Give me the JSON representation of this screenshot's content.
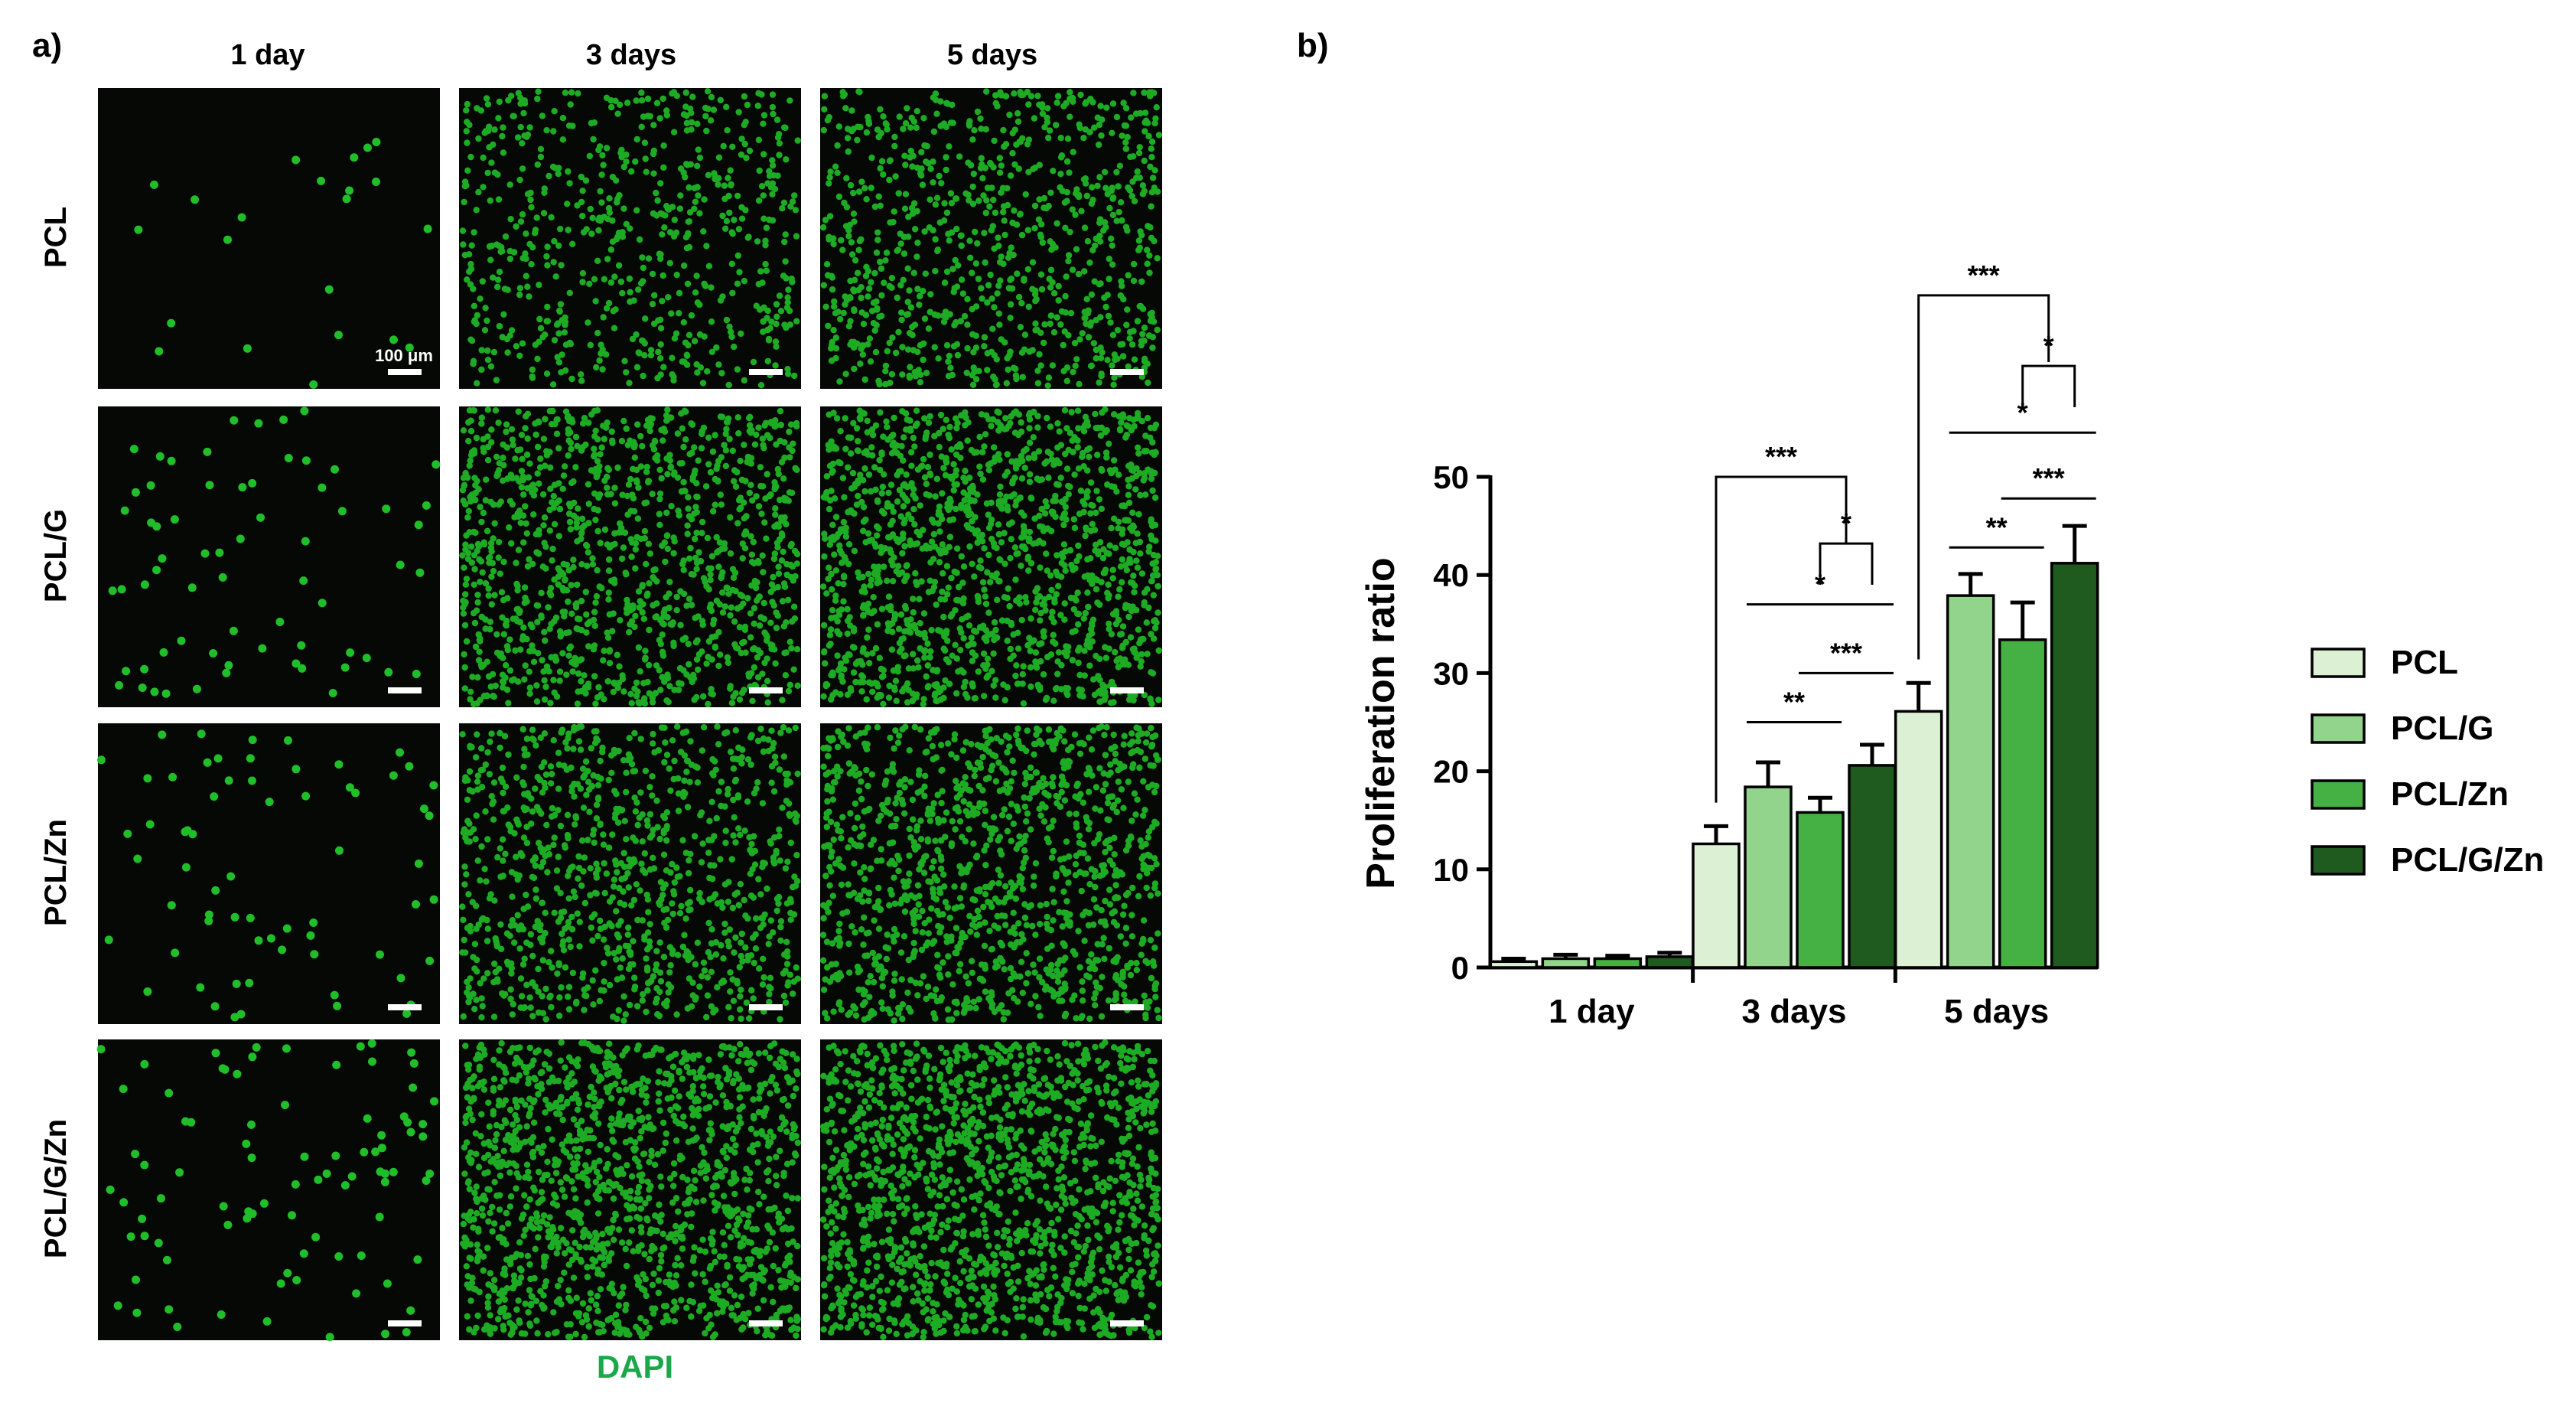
{
  "panel_a": {
    "label": "a)",
    "columns": [
      "1 day",
      "3 days",
      "5 days"
    ],
    "rows": [
      "PCL",
      "PCL/G",
      "PCL/Zn",
      "PCL/G/Zn"
    ],
    "cell_density": [
      [
        0.01,
        0.3,
        0.4
      ],
      [
        0.03,
        0.55,
        0.65
      ],
      [
        0.03,
        0.45,
        0.55
      ],
      [
        0.04,
        0.65,
        0.7
      ]
    ],
    "scale_bar_label": "100 μm",
    "stain_label": "DAPI",
    "stain_color": "#1aa84a",
    "nucleus_color": "#22c82a"
  },
  "chart_data": {
    "label": "b)",
    "type": "bar",
    "categories": [
      "1 day",
      "3 days",
      "5 days"
    ],
    "ylabel": "Proliferation ratio",
    "xlabel": "",
    "ylim": [
      0,
      50
    ],
    "yticks": [
      0,
      10,
      20,
      30,
      40,
      50
    ],
    "series": [
      {
        "name": "PCL",
        "color": "#dcf0d4",
        "values": [
          0.6,
          12.6,
          26.1
        ],
        "errors": [
          0.3,
          1.8,
          2.9
        ]
      },
      {
        "name": "PCL/G",
        "color": "#93d48c",
        "values": [
          0.9,
          18.4,
          37.9
        ],
        "errors": [
          0.4,
          2.5,
          2.2
        ]
      },
      {
        "name": "PCL/Zn",
        "color": "#45b145",
        "values": [
          0.9,
          15.8,
          33.4
        ],
        "errors": [
          0.3,
          1.5,
          3.8
        ]
      },
      {
        "name": "PCL/G/Zn",
        "color": "#1f5a1f",
        "values": [
          1.1,
          20.6,
          41.2
        ],
        "errors": [
          0.4,
          2.1,
          3.8
        ]
      }
    ],
    "significance": [
      {
        "category": 1,
        "text": "***",
        "type": "bracket-to-pair",
        "from": 0,
        "pair": [
          2,
          3
        ],
        "y": 50
      },
      {
        "category": 1,
        "text": "*",
        "type": "pair",
        "pair": [
          2,
          3
        ],
        "y": 43.2
      },
      {
        "category": 1,
        "text": "*",
        "type": "line",
        "pair": [
          1,
          3
        ],
        "y": 37
      },
      {
        "category": 1,
        "text": "***",
        "type": "line",
        "pair": [
          2,
          3
        ],
        "y": 30
      },
      {
        "category": 1,
        "text": "**",
        "type": "line",
        "pair": [
          1,
          2
        ],
        "y": 25
      },
      {
        "category": 2,
        "text": "***",
        "type": "bracket-to-pair",
        "from": 0,
        "pair": [
          2,
          3
        ],
        "y": 68.5
      },
      {
        "category": 2,
        "text": "*",
        "type": "pair",
        "pair": [
          2,
          3
        ],
        "y": 61.3
      },
      {
        "category": 2,
        "text": "*",
        "type": "line",
        "pair": [
          1,
          3
        ],
        "y": 54.5
      },
      {
        "category": 2,
        "text": "***",
        "type": "line",
        "pair": [
          2,
          3
        ],
        "y": 47.8
      },
      {
        "category": 2,
        "text": "**",
        "type": "line",
        "pair": [
          1,
          2
        ],
        "y": 42.8
      }
    ],
    "legend_position": "right"
  }
}
